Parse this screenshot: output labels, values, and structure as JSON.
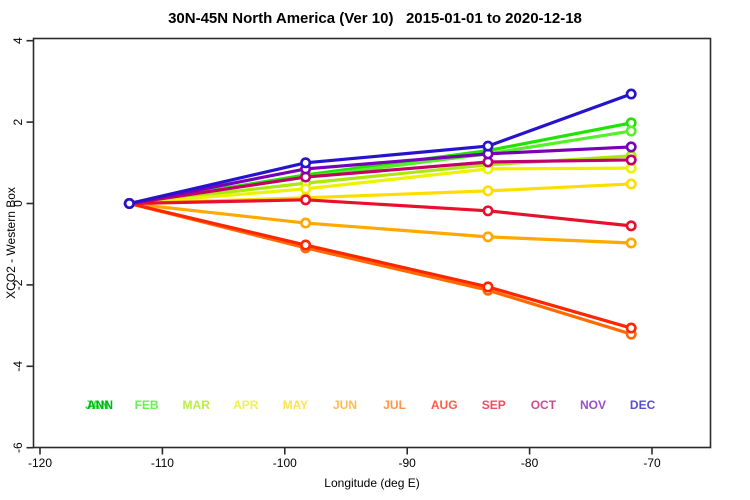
{
  "title": "30N-45N North America (Ver 10)   2015-01-01 to 2020-12-18",
  "chart_data": {
    "type": "line",
    "title": "30N-45N North America (Ver 10)   2015-01-01 to 2020-12-18",
    "xlabel": "Longitude (deg E)",
    "ylabel": "XCO2 - Western Box",
    "xlim": [
      -120,
      -64.5
    ],
    "ylim": [
      -6,
      4
    ],
    "xticks": [
      -120,
      -110,
      -100,
      -90,
      -80,
      -70
    ],
    "yticks": [
      4,
      2,
      0,
      -2,
      -4,
      -6
    ],
    "grid": false,
    "legend_position": "inside-bottom",
    "marker": "open-circle",
    "x": [
      -112.7,
      -98.3,
      -83.4,
      -71.7
    ],
    "series": [
      {
        "name": "JAN",
        "color": "#1FE400",
        "label_color": "#33E833",
        "values": [
          0,
          0.7,
          1.3,
          1.98
        ]
      },
      {
        "name": "FEB",
        "color": "#55F02B",
        "label_color": "#66F24D",
        "values": [
          0,
          0.65,
          1.22,
          1.78
        ]
      },
      {
        "name": "MAR",
        "color": "#ABE80F",
        "label_color": "#BBEE44",
        "values": [
          0,
          0.5,
          0.95,
          1.17
        ]
      },
      {
        "name": "APR",
        "color": "#EDF200",
        "label_color": "#F0F24D",
        "values": [
          0,
          0.36,
          0.85,
          0.87
        ]
      },
      {
        "name": "MAY",
        "color": "#FFDD00",
        "label_color": "#FFE24D",
        "values": [
          0,
          0.14,
          0.31,
          0.48
        ]
      },
      {
        "name": "JUN",
        "color": "#FFA800",
        "label_color": "#FFBB4D",
        "values": [
          0,
          -0.48,
          -0.82,
          -0.97
        ]
      },
      {
        "name": "JUL",
        "color": "#FF6A00",
        "label_color": "#FF9447",
        "values": [
          0,
          -1.09,
          -2.13,
          -3.21
        ]
      },
      {
        "name": "AUG",
        "color": "#FF2600",
        "label_color": "#FF5A47",
        "values": [
          0,
          -1.02,
          -2.05,
          -3.06
        ]
      },
      {
        "name": "SEP",
        "color": "#E8102D",
        "label_color": "#EE4D5E",
        "values": [
          0,
          0.09,
          -0.18,
          -0.55
        ]
      },
      {
        "name": "OCT",
        "color": "#C1006B",
        "label_color": "#CC4D8F",
        "values": [
          0,
          0.65,
          1.02,
          1.07
        ]
      },
      {
        "name": "NOV",
        "color": "#7A00B8",
        "label_color": "#9A4DCC",
        "values": [
          0,
          0.85,
          1.22,
          1.39
        ]
      },
      {
        "name": "DEC",
        "color": "#2614CC",
        "label_color": "#5A4DD6",
        "values": [
          0,
          1.0,
          1.41,
          2.69
        ]
      }
    ],
    "annual_label": {
      "text": "ANN",
      "color": "#00B41E"
    },
    "month_label_y": -5.05
  }
}
